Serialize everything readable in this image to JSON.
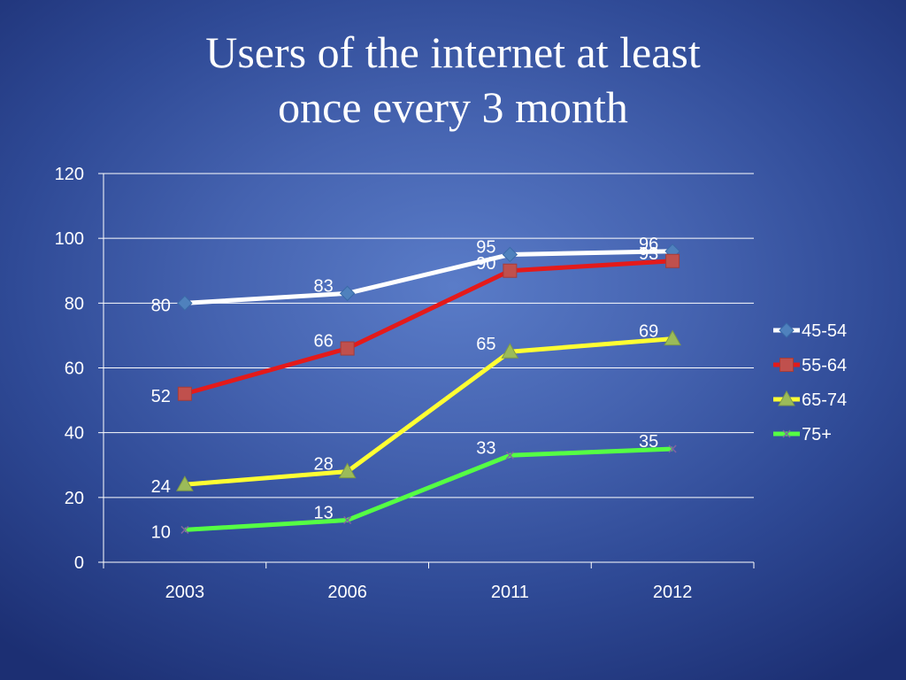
{
  "slide": {
    "title_line1": "Users of the internet at least",
    "title_line2": "once every 3 month"
  },
  "chart_data": {
    "type": "line",
    "title": "Users of the internet at least once every 3 month",
    "categories": [
      "2003",
      "2006",
      "2011",
      "2012"
    ],
    "ylim": [
      0,
      120
    ],
    "yticks": [
      0,
      20,
      40,
      60,
      80,
      100,
      120
    ],
    "grid": true,
    "legend_position": "right",
    "series": [
      {
        "name": "45-54",
        "values": [
          80,
          83,
          95,
          96
        ],
        "line_color": "#ffffff",
        "marker_color": "#4f81bd",
        "marker": "diamond"
      },
      {
        "name": "55-64",
        "values": [
          52,
          66,
          90,
          93
        ],
        "line_color": "#e41a1a",
        "marker_color": "#c0504d",
        "marker": "square"
      },
      {
        "name": "65-74",
        "values": [
          24,
          28,
          65,
          69
        ],
        "line_color": "#ffff33",
        "marker_color": "#9bbb59",
        "marker": "triangle"
      },
      {
        "name": "75+",
        "values": [
          10,
          13,
          33,
          35
        ],
        "line_color": "#55ff44",
        "marker_color": "#8064a2",
        "marker": "x"
      }
    ]
  }
}
